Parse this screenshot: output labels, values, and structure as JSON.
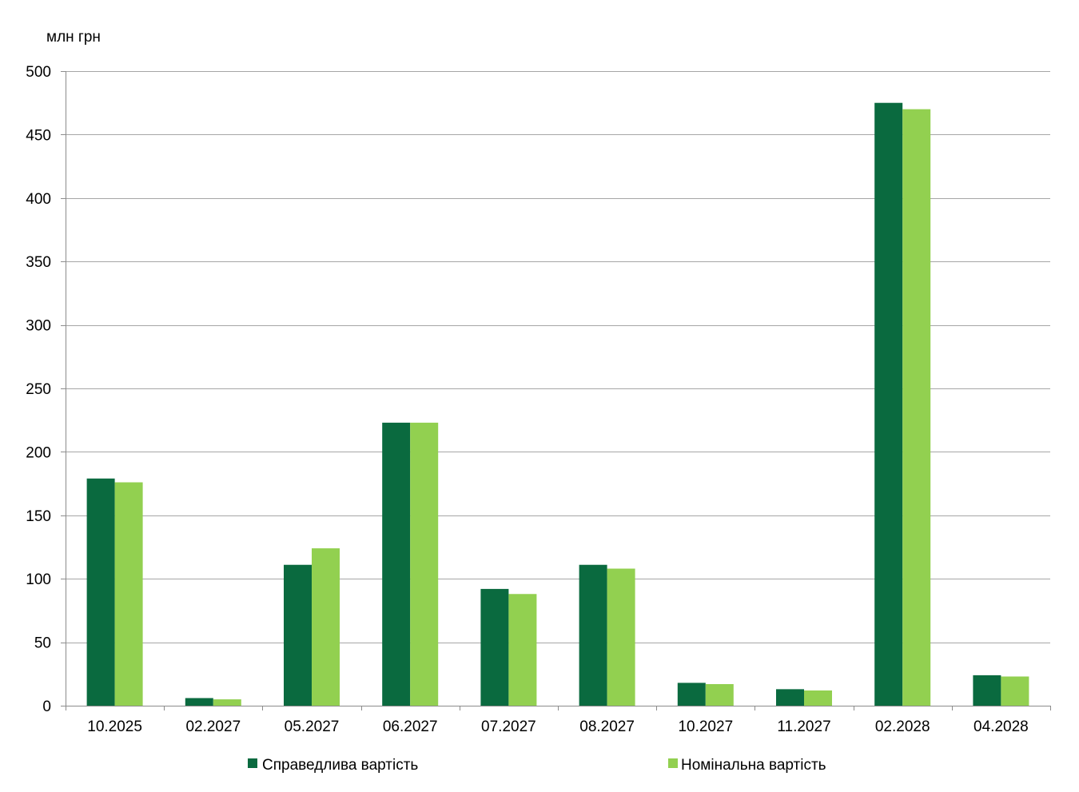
{
  "chart_data": {
    "type": "bar",
    "unit_label": "млн  грн",
    "categories": [
      "10.2025",
      "02.2027",
      "05.2027",
      "06.2027",
      "07.2027",
      "08.2027",
      "10.2027",
      "11.2027",
      "02.2028",
      "04.2028"
    ],
    "series": [
      {
        "name": "Справедлива  вартість",
        "color": "#0a6a3f",
        "values": [
          179,
          6,
          111,
          223,
          92,
          111,
          18,
          13,
          475,
          24
        ]
      },
      {
        "name": "Номінальна  вартість",
        "color": "#92d050",
        "values": [
          176,
          5,
          124,
          223,
          88,
          108,
          17,
          12,
          470,
          23
        ]
      }
    ],
    "ylim": [
      0,
      500
    ],
    "yticks": [
      0,
      50,
      100,
      150,
      200,
      250,
      300,
      350,
      400,
      450,
      500
    ],
    "grid": true,
    "grid_color": "#a6a6a6",
    "legend_position": "bottom"
  }
}
